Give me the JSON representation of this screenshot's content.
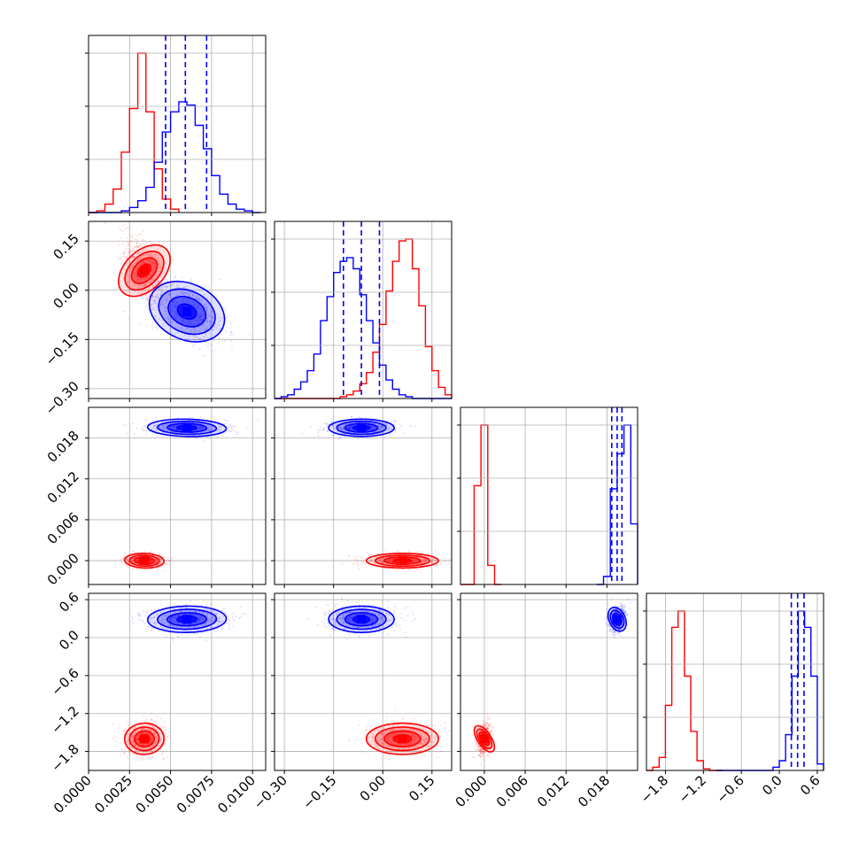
{
  "chart_data": {
    "type": "corner",
    "grid": true,
    "colors": {
      "red": "#ff0000",
      "blue": "#0000ff",
      "grid": "#b0b0b0"
    },
    "params": [
      {
        "id": "p1",
        "range": [
          0,
          0.0108
        ],
        "ticks": [
          "0.0000",
          "0.0025",
          "0.0050",
          "0.0075",
          "0.0100"
        ],
        "tick_values": [
          0,
          0.0025,
          0.005,
          0.0075,
          0.01
        ]
      },
      {
        "id": "p2",
        "range": [
          -0.33,
          0.21
        ],
        "ticks": [
          "−0.30",
          "−0.15",
          "0.00",
          "0.15"
        ],
        "tick_values": [
          -0.3,
          -0.15,
          0.0,
          0.15
        ]
      },
      {
        "id": "p3",
        "range": [
          -0.0035,
          0.0225
        ],
        "ticks": [
          "0.000",
          "0.006",
          "0.012",
          "0.018"
        ],
        "tick_values": [
          0.0,
          0.006,
          0.012,
          0.018
        ]
      },
      {
        "id": "p4",
        "range": [
          -2.1,
          0.7
        ],
        "ticks": [
          "−1.8",
          "−1.2",
          "−0.6",
          "0.0",
          "0.6"
        ],
        "tick_values": [
          -1.8,
          -1.2,
          -0.6,
          0.0,
          0.6
        ]
      }
    ],
    "red": {
      "mean": [
        0.0034,
        0.06,
        0.0,
        -1.6
      ],
      "sd": [
        0.0006,
        0.055,
        0.0005,
        0.12
      ],
      "hist": [
        {
          "edges": [
            0.0,
            0.0005,
            0.001,
            0.0015,
            0.002,
            0.0025,
            0.003,
            0.0035,
            0.004,
            0.0045,
            0.005,
            0.0055
          ],
          "counts": [
            0,
            1,
            5,
            14,
            36,
            62,
            95,
            60,
            26,
            8,
            2
          ]
        },
        {
          "edges": [
            -0.33,
            -0.31,
            -0.29,
            -0.27,
            -0.25,
            -0.23,
            -0.21,
            -0.19,
            -0.17,
            -0.15,
            -0.13,
            -0.11,
            -0.09,
            -0.07,
            -0.05,
            -0.03,
            -0.01,
            0.01,
            0.03,
            0.05,
            0.07,
            0.09,
            0.11,
            0.13,
            0.15,
            0.17,
            0.19,
            0.21
          ],
          "counts": [
            0,
            0,
            0,
            0,
            0,
            0,
            0,
            0,
            0,
            0,
            1,
            2,
            4,
            8,
            14,
            25,
            40,
            58,
            74,
            85,
            86,
            70,
            50,
            28,
            15,
            6,
            2
          ]
        },
        {
          "edges": [
            -0.0035,
            -0.0025,
            -0.0015,
            -0.0005,
            0.0005,
            0.0015,
            0.0025
          ],
          "counts": [
            0,
            0,
            62,
            100,
            12,
            0
          ]
        },
        {
          "edges": [
            -2.1,
            -2.0,
            -1.9,
            -1.8,
            -1.7,
            -1.6,
            -1.5,
            -1.4,
            -1.3,
            -1.2,
            -1.1,
            -1.0,
            -0.9
          ],
          "counts": [
            0,
            2,
            8,
            40,
            88,
            98,
            58,
            24,
            6,
            1,
            0,
            0
          ]
        }
      ]
    },
    "blue": {
      "mean": [
        0.006,
        -0.065,
        0.0195,
        0.29
      ],
      "sd": [
        0.0012,
        0.05,
        0.0006,
        0.1
      ],
      "quantiles": [
        [
          0.0047,
          0.0059,
          0.0072
        ],
        [
          -0.12,
          -0.065,
          -0.01
        ],
        [
          0.0187,
          0.0195,
          0.0202
        ],
        [
          0.19,
          0.29,
          0.39
        ]
      ],
      "hist": [
        {
          "edges": [
            0.0,
            0.0005,
            0.001,
            0.0015,
            0.002,
            0.0025,
            0.003,
            0.0035,
            0.004,
            0.0045,
            0.005,
            0.0055,
            0.006,
            0.0065,
            0.007,
            0.0075,
            0.008,
            0.0085,
            0.009,
            0.0095,
            0.01,
            0.0105
          ],
          "counts": [
            0,
            0,
            0,
            0,
            1,
            3,
            7,
            15,
            30,
            48,
            60,
            66,
            64,
            52,
            38,
            22,
            11,
            5,
            2,
            1,
            0
          ]
        },
        {
          "edges": [
            -0.33,
            -0.31,
            -0.29,
            -0.27,
            -0.25,
            -0.23,
            -0.21,
            -0.19,
            -0.17,
            -0.15,
            -0.13,
            -0.11,
            -0.09,
            -0.07,
            -0.05,
            -0.03,
            -0.01,
            0.01,
            0.03,
            0.05,
            0.07,
            0.09,
            0.11,
            0.13,
            0.15,
            0.17,
            0.19,
            0.21
          ],
          "counts": [
            0,
            1,
            2,
            5,
            9,
            15,
            24,
            42,
            55,
            68,
            74,
            76,
            70,
            56,
            42,
            30,
            18,
            10,
            5,
            2,
            1,
            0,
            0,
            0,
            0,
            0,
            0
          ]
        },
        {
          "edges": [
            0.0165,
            0.0175,
            0.0185,
            0.0195,
            0.0205,
            0.0215,
            0.0225
          ],
          "counts": [
            0,
            5,
            60,
            82,
            100,
            38
          ]
        },
        {
          "edges": [
            -1.0,
            -0.9,
            -0.8,
            -0.7,
            -0.6,
            -0.5,
            -0.4,
            -0.3,
            -0.2,
            -0.1,
            0.0,
            0.1,
            0.2,
            0.3,
            0.4,
            0.5,
            0.6,
            0.7
          ],
          "counts": [
            0,
            0,
            0,
            0,
            0,
            0,
            0,
            0,
            0,
            2,
            6,
            22,
            58,
            98,
            88,
            58,
            4
          ]
        }
      ]
    }
  }
}
